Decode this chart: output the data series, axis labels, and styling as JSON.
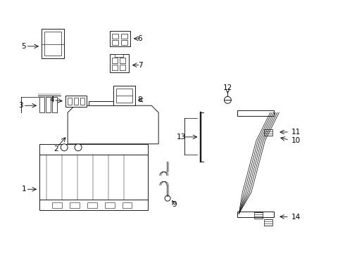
{
  "background_color": "#ffffff",
  "line_color": "#1a1a1a",
  "text_color": "#000000"
}
